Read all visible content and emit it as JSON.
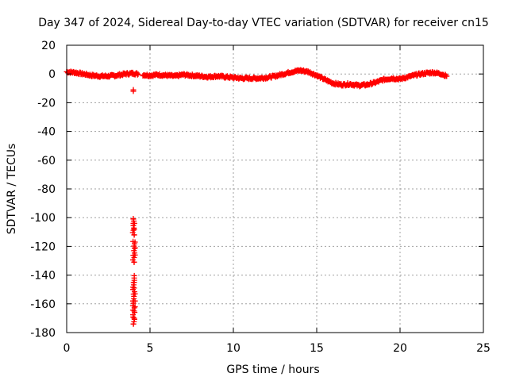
{
  "chart_data": {
    "type": "scatter",
    "title": "Day 347 of 2024, Sidereal Day-to-day VTEC variation (SDTVAR) for receiver cn15",
    "xlabel": "GPS time / hours",
    "ylabel": "SDTVAR / TECUs",
    "xlim": [
      0,
      25
    ],
    "ylim": [
      -180,
      20
    ],
    "xticks": [
      0,
      5,
      10,
      15,
      20,
      25
    ],
    "yticks": [
      20,
      0,
      -20,
      -40,
      -60,
      -80,
      -100,
      -120,
      -140,
      -160,
      -180
    ],
    "grid": true,
    "marker": "+",
    "series": [
      {
        "name": "SDTVAR",
        "color": "#ff0000",
        "baseline": {
          "x": [
            0.0,
            0.5,
            1.0,
            1.5,
            2.0,
            2.5,
            3.0,
            3.5,
            4.0,
            4.5,
            5.0,
            5.5,
            6.0,
            6.5,
            7.0,
            7.5,
            8.0,
            8.5,
            9.0,
            9.5,
            10.0,
            10.5,
            11.0,
            11.5,
            12.0,
            12.5,
            13.0,
            13.5,
            14.0,
            14.5,
            15.0,
            15.5,
            16.0,
            16.5,
            17.0,
            17.5,
            18.0,
            18.5,
            19.0,
            19.5,
            20.0,
            20.5,
            21.0,
            21.5,
            22.0,
            22.5,
            22.8
          ],
          "y": [
            1.5,
            1.0,
            0.0,
            -1.0,
            -1.5,
            -1.5,
            -1.0,
            0.0,
            0.5,
            -0.5,
            -1.0,
            -0.5,
            -1.0,
            -1.5,
            -0.5,
            -1.0,
            -1.5,
            -2.0,
            -1.5,
            -2.0,
            -2.5,
            -3.0,
            -3.0,
            -3.0,
            -2.5,
            -1.5,
            0.0,
            1.5,
            2.5,
            1.5,
            -1.0,
            -4.0,
            -6.5,
            -7.5,
            -7.0,
            -8.0,
            -7.5,
            -6.0,
            -4.0,
            -3.0,
            -3.5,
            -2.0,
            -0.5,
            0.5,
            1.0,
            0.0,
            -1.5
          ]
        },
        "excursions": {
          "x": [
            4.0,
            4.0,
            4.0,
            4.05,
            4.05,
            4.1,
            4.1,
            4.1,
            4.05,
            4.05,
            4.05,
            4.1,
            4.1,
            4.1,
            4.05,
            4.05,
            4.0,
            4.0
          ],
          "y": [
            -11.0,
            -12.0,
            -174.0,
            -170.0,
            -165.0,
            -162.0,
            -158.0,
            -153.0,
            -149.0,
            -145.0,
            -131.0,
            -126.0,
            -121.0,
            -117.0,
            -112.0,
            -108.0,
            -104.0,
            -101.0
          ]
        }
      }
    ]
  }
}
